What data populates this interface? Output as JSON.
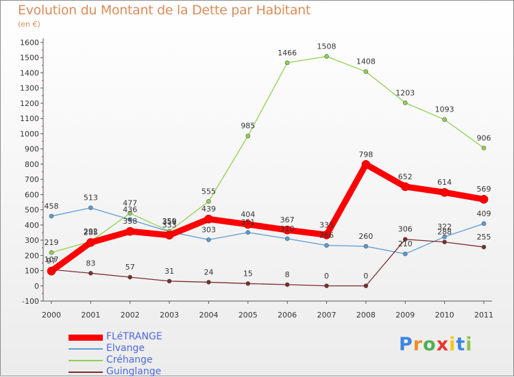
{
  "chart_data": {
    "type": "line",
    "title": "Evolution du Montant de la Dette par Habitant",
    "subtitle": "(en €)",
    "x": [
      "2000",
      "2001",
      "2002",
      "2003",
      "2004",
      "2005",
      "2006",
      "2007",
      "2008",
      "2009",
      "2010",
      "2011"
    ],
    "ylim": [
      -100,
      1600
    ],
    "yticks": [
      -100,
      0,
      100,
      200,
      300,
      400,
      500,
      600,
      700,
      800,
      900,
      1000,
      1100,
      1200,
      1300,
      1400,
      1500,
      1600
    ],
    "grid": false,
    "legend_position": "bottom-left",
    "series": [
      {
        "name": "FLéTRANGE",
        "color": "#ff0000",
        "values": [
          97,
          285,
          358,
          333,
          439,
          404,
          367,
          335,
          798,
          652,
          614,
          569
        ]
      },
      {
        "name": "Elvange",
        "color": "#5b9bd5",
        "values": [
          458,
          513,
          436,
          356,
          303,
          351,
          310,
          266,
          260,
          210,
          322,
          409
        ]
      },
      {
        "name": "Créhange",
        "color": "#92d050",
        "values": [
          219,
          292,
          477,
          359,
          555,
          985,
          1466,
          1508,
          1408,
          1203,
          1093,
          906
        ]
      },
      {
        "name": "Guinglange",
        "color": "#7b2c2c",
        "values": [
          107,
          83,
          57,
          31,
          24,
          15,
          8,
          0,
          0,
          306,
          288,
          255
        ]
      }
    ]
  },
  "logo": {
    "text": "Proxiti",
    "colors": [
      "#3b87e0",
      "#f28c28",
      "#4caf50",
      "#e8352e",
      "#f5c518",
      "#3b87e0",
      "#8bc34a"
    ]
  }
}
